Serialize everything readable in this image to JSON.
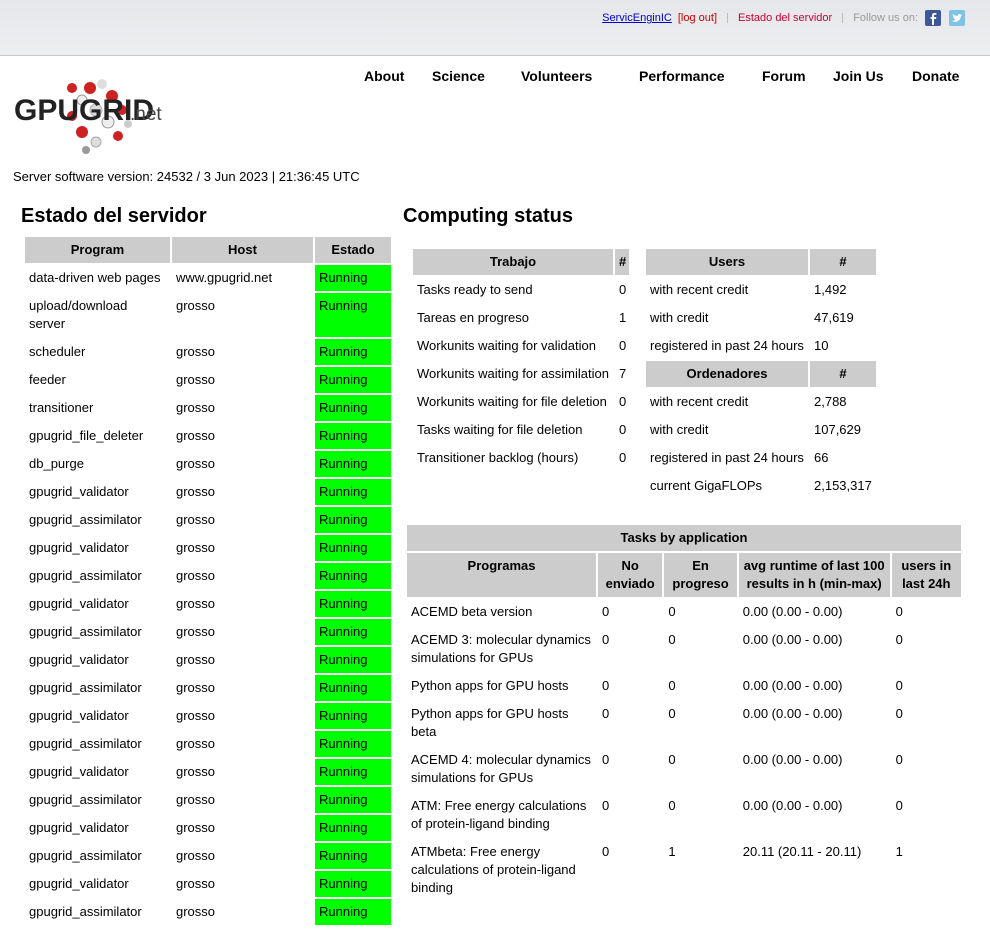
{
  "topbar": {
    "user": "ServicEnginIC",
    "logout": "[log out]",
    "status_link": "Estado del servidor",
    "follow": "Follow us on:"
  },
  "nav": [
    "About",
    "Science",
    "Volunteers",
    "Performance",
    "Forum",
    "Join Us",
    "Donate"
  ],
  "logo": {
    "main": "GPUGRID",
    "suffix": ".net"
  },
  "server_version": "Server software version: 24532 / 3 Jun 2023 | 21:36:45 UTC",
  "daemons": {
    "title": "Estado del servidor",
    "headers": [
      "Program",
      "Host",
      "Estado"
    ],
    "rows": [
      [
        "data-driven web pages",
        "www.gpugrid.net",
        "Running"
      ],
      [
        "upload/download server",
        "grosso",
        "Running"
      ],
      [
        "scheduler",
        "grosso",
        "Running"
      ],
      [
        "feeder",
        "grosso",
        "Running"
      ],
      [
        "transitioner",
        "grosso",
        "Running"
      ],
      [
        "gpugrid_file_deleter",
        "grosso",
        "Running"
      ],
      [
        "db_purge",
        "grosso",
        "Running"
      ],
      [
        "gpugrid_validator",
        "grosso",
        "Running"
      ],
      [
        "gpugrid_assimilator",
        "grosso",
        "Running"
      ],
      [
        "gpugrid_validator",
        "grosso",
        "Running"
      ],
      [
        "gpugrid_assimilator",
        "grosso",
        "Running"
      ],
      [
        "gpugrid_validator",
        "grosso",
        "Running"
      ],
      [
        "gpugrid_assimilator",
        "grosso",
        "Running"
      ],
      [
        "gpugrid_validator",
        "grosso",
        "Running"
      ],
      [
        "gpugrid_assimilator",
        "grosso",
        "Running"
      ],
      [
        "gpugrid_validator",
        "grosso",
        "Running"
      ],
      [
        "gpugrid_assimilator",
        "grosso",
        "Running"
      ],
      [
        "gpugrid_validator",
        "grosso",
        "Running"
      ],
      [
        "gpugrid_assimilator",
        "grosso",
        "Running"
      ],
      [
        "gpugrid_validator",
        "grosso",
        "Running"
      ],
      [
        "gpugrid_assimilator",
        "grosso",
        "Running"
      ],
      [
        "gpugrid_validator",
        "grosso",
        "Running"
      ],
      [
        "gpugrid_assimilator",
        "grosso",
        "Running"
      ]
    ]
  },
  "computing": {
    "title": "Computing status",
    "work": {
      "headers": [
        "Trabajo",
        "#"
      ],
      "rows": [
        [
          "Tasks ready to send",
          "0"
        ],
        [
          "Tareas en progreso",
          "1"
        ],
        [
          "Workunits waiting for validation",
          "0"
        ],
        [
          "Workunits waiting for assimilation",
          "7"
        ],
        [
          "Workunits waiting for file deletion",
          "0"
        ],
        [
          "Tasks waiting for file deletion",
          "0"
        ],
        [
          "Transitioner backlog (hours)",
          "0"
        ]
      ]
    },
    "users": {
      "headers": [
        "Users",
        "#"
      ],
      "rows": [
        [
          "with recent credit",
          "1,492"
        ],
        [
          "with credit",
          "47,619"
        ],
        [
          "registered in past 24 hours",
          "10"
        ]
      ]
    },
    "computers": {
      "headers": [
        "Ordenadores",
        "#"
      ],
      "rows": [
        [
          "with recent credit",
          "2,788"
        ],
        [
          "with credit",
          "107,629"
        ],
        [
          "registered in past 24 hours",
          "66"
        ],
        [
          "current GigaFLOPs",
          "2,153,317"
        ]
      ]
    }
  },
  "apps": {
    "title": "Tasks by application",
    "headers": [
      "Programas",
      "No enviado",
      "En progreso",
      "avg runtime of last 100 results in h (min-max)",
      "users in last 24h"
    ],
    "rows": [
      [
        "ACEMD beta version",
        "0",
        "0",
        "0.00 (0.00 - 0.00)",
        "0"
      ],
      [
        "ACEMD 3: molecular dynamics simulations for GPUs",
        "0",
        "0",
        "0.00 (0.00 - 0.00)",
        "0"
      ],
      [
        "Python apps for GPU hosts",
        "0",
        "0",
        "0.00 (0.00 - 0.00)",
        "0"
      ],
      [
        "Python apps for GPU hosts beta",
        "0",
        "0",
        "0.00 (0.00 - 0.00)",
        "0"
      ],
      [
        "ACEMD 4: molecular dynamics simulations for GPUs",
        "0",
        "0",
        "0.00 (0.00 - 0.00)",
        "0"
      ],
      [
        "ATM: Free energy calculations of protein-ligand binding",
        "0",
        "0",
        "0.00 (0.00 - 0.00)",
        "0"
      ],
      [
        "ATMbeta: Free energy calculations of protein-ligand binding",
        "0",
        "1",
        "20.11 (20.11 - 20.11)",
        "1"
      ]
    ]
  }
}
